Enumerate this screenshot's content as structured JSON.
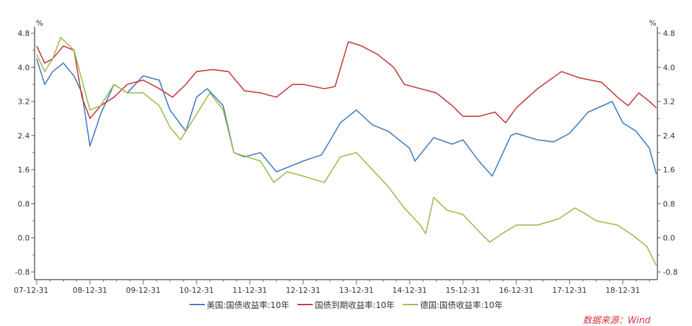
{
  "chart_data": {
    "type": "line",
    "title": "",
    "ylabel_left": "%",
    "ylabel_right": "%",
    "ylim": [
      -1.03,
      4.95
    ],
    "xlim": [
      2007.96,
      2019.65
    ],
    "yticks": [
      4.8,
      4.0,
      3.2,
      2.4,
      1.6,
      0.8,
      0.0,
      -0.8
    ],
    "ytick_labels": [
      "4.8",
      "4.0",
      "3.2",
      "2.4",
      "1.6",
      "0.8",
      "0.0",
      "-0.8"
    ],
    "xticks": [
      2008,
      2009,
      2010,
      2011,
      2012,
      2013,
      2014,
      2015,
      2016,
      2017,
      2018,
      2019
    ],
    "xtick_labels": [
      "07-12-31",
      "08-12-31",
      "09-12-31",
      "10-12-31",
      "11-12-31",
      "12-12-31",
      "13-12-31",
      "14-12-31",
      "15-12-31",
      "16-12-31",
      "17-12-31",
      "18-12-31"
    ],
    "legend_placement": "bottom-center",
    "series": [
      {
        "name": "美国:国债收益率:10年",
        "color": "#3f7cc4",
        "x": [
          2008.0,
          2008.15,
          2008.3,
          2008.5,
          2008.7,
          2008.85,
          2009.0,
          2009.2,
          2009.45,
          2009.7,
          2010.0,
          2010.3,
          2010.5,
          2010.8,
          2011.0,
          2011.2,
          2011.5,
          2011.7,
          2011.9,
          2012.2,
          2012.5,
          2012.8,
          2013.0,
          2013.35,
          2013.7,
          2014.0,
          2014.3,
          2014.6,
          2015.0,
          2015.1,
          2015.45,
          2015.8,
          2016.0,
          2016.3,
          2016.55,
          2016.9,
          2017.0,
          2017.4,
          2017.7,
          2018.0,
          2018.35,
          2018.8,
          2019.0,
          2019.25,
          2019.5,
          2019.63
        ],
        "y": [
          4.2,
          3.6,
          3.9,
          4.1,
          3.8,
          3.4,
          2.15,
          2.9,
          3.6,
          3.4,
          3.8,
          3.7,
          3.0,
          2.5,
          3.3,
          3.5,
          3.1,
          2.0,
          1.9,
          2.0,
          1.55,
          1.7,
          1.8,
          1.95,
          2.7,
          3.0,
          2.65,
          2.5,
          2.1,
          1.8,
          2.35,
          2.2,
          2.3,
          1.8,
          1.45,
          2.4,
          2.45,
          2.3,
          2.25,
          2.45,
          2.95,
          3.2,
          2.7,
          2.5,
          2.1,
          1.5
        ]
      },
      {
        "name": "国债到期收益率:10年",
        "color": "#c8383a",
        "x": [
          2008.0,
          2008.15,
          2008.3,
          2008.5,
          2008.7,
          2008.85,
          2009.0,
          2009.2,
          2009.45,
          2009.7,
          2010.0,
          2010.3,
          2010.55,
          2010.8,
          2011.0,
          2011.3,
          2011.6,
          2011.9,
          2012.2,
          2012.5,
          2012.8,
          2013.0,
          2013.4,
          2013.6,
          2013.85,
          2014.1,
          2014.4,
          2014.7,
          2014.9,
          2015.2,
          2015.5,
          2015.8,
          2016.0,
          2016.3,
          2016.6,
          2016.8,
          2017.0,
          2017.4,
          2017.85,
          2018.2,
          2018.6,
          2018.9,
          2019.1,
          2019.3,
          2019.5,
          2019.63
        ],
        "y": [
          4.5,
          4.1,
          4.2,
          4.5,
          4.4,
          3.3,
          2.8,
          3.1,
          3.3,
          3.6,
          3.7,
          3.5,
          3.3,
          3.6,
          3.9,
          3.95,
          3.9,
          3.45,
          3.4,
          3.3,
          3.6,
          3.6,
          3.5,
          3.55,
          4.6,
          4.5,
          4.3,
          4.0,
          3.6,
          3.5,
          3.4,
          3.1,
          2.85,
          2.85,
          2.95,
          2.7,
          3.05,
          3.5,
          3.9,
          3.75,
          3.65,
          3.3,
          3.1,
          3.4,
          3.2,
          3.05
        ]
      },
      {
        "name": "德国:国债收益率:10年",
        "color": "#9bbb4a",
        "x": [
          2008.0,
          2008.15,
          2008.3,
          2008.45,
          2008.7,
          2008.85,
          2009.0,
          2009.2,
          2009.45,
          2009.7,
          2010.0,
          2010.3,
          2010.5,
          2010.7,
          2011.0,
          2011.25,
          2011.5,
          2011.7,
          2011.95,
          2012.2,
          2012.45,
          2012.7,
          2013.0,
          2013.4,
          2013.7,
          2014.0,
          2014.3,
          2014.6,
          2014.9,
          2015.2,
          2015.3,
          2015.45,
          2015.7,
          2016.0,
          2016.3,
          2016.5,
          2016.8,
          2017.0,
          2017.4,
          2017.8,
          2018.1,
          2018.25,
          2018.5,
          2018.9,
          2019.2,
          2019.45,
          2019.63
        ],
        "y": [
          4.3,
          3.9,
          4.2,
          4.7,
          4.4,
          3.7,
          3.0,
          3.1,
          3.6,
          3.4,
          3.4,
          3.1,
          2.6,
          2.3,
          2.9,
          3.4,
          3.0,
          2.0,
          1.9,
          1.8,
          1.3,
          1.55,
          1.45,
          1.3,
          1.9,
          2.0,
          1.6,
          1.2,
          0.7,
          0.3,
          0.1,
          0.95,
          0.65,
          0.55,
          0.15,
          -0.1,
          0.15,
          0.3,
          0.3,
          0.45,
          0.7,
          0.6,
          0.4,
          0.3,
          0.05,
          -0.2,
          -0.65
        ]
      }
    ]
  },
  "source": "数据来源：Wind"
}
